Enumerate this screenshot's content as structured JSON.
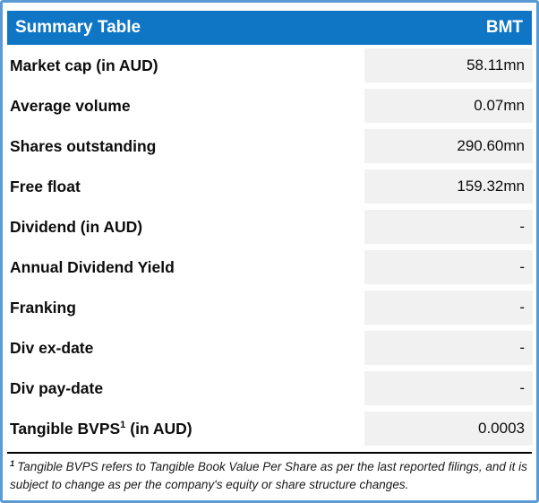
{
  "header": {
    "title": "Summary Table",
    "ticker": "BMT"
  },
  "table": {
    "rows": [
      {
        "label": "Market cap (in AUD)",
        "value": "58.11mn"
      },
      {
        "label": "Average volume",
        "value": "0.07mn"
      },
      {
        "label": "Shares outstanding",
        "value": "290.60mn"
      },
      {
        "label": "Free float",
        "value": "159.32mn"
      },
      {
        "label": "Dividend (in AUD)",
        "value": "-"
      },
      {
        "label": "Annual Dividend Yield",
        "value": "-"
      },
      {
        "label": "Franking",
        "value": "-"
      },
      {
        "label": "Div ex-date",
        "value": "-"
      },
      {
        "label": "Div pay-date",
        "value": "-"
      },
      {
        "label_pre": "Tangible BVPS",
        "label_sup": "1",
        "label_post": "(in AUD)",
        "value": "0.0003"
      }
    ]
  },
  "footnote": {
    "marker": "1",
    "text": "Tangible BVPS refers to Tangible Book Value Per Share as per the last reported filings, and it is subject to change as per the company's equity or share structure changes."
  },
  "colors": {
    "header_bg": "#0F76C5",
    "header_text": "#FFFFFF",
    "frame_border": "#5B9BD5",
    "value_cell_bg": "#F1F1F1",
    "divider": "#000000",
    "text": "#0D0D0D"
  }
}
